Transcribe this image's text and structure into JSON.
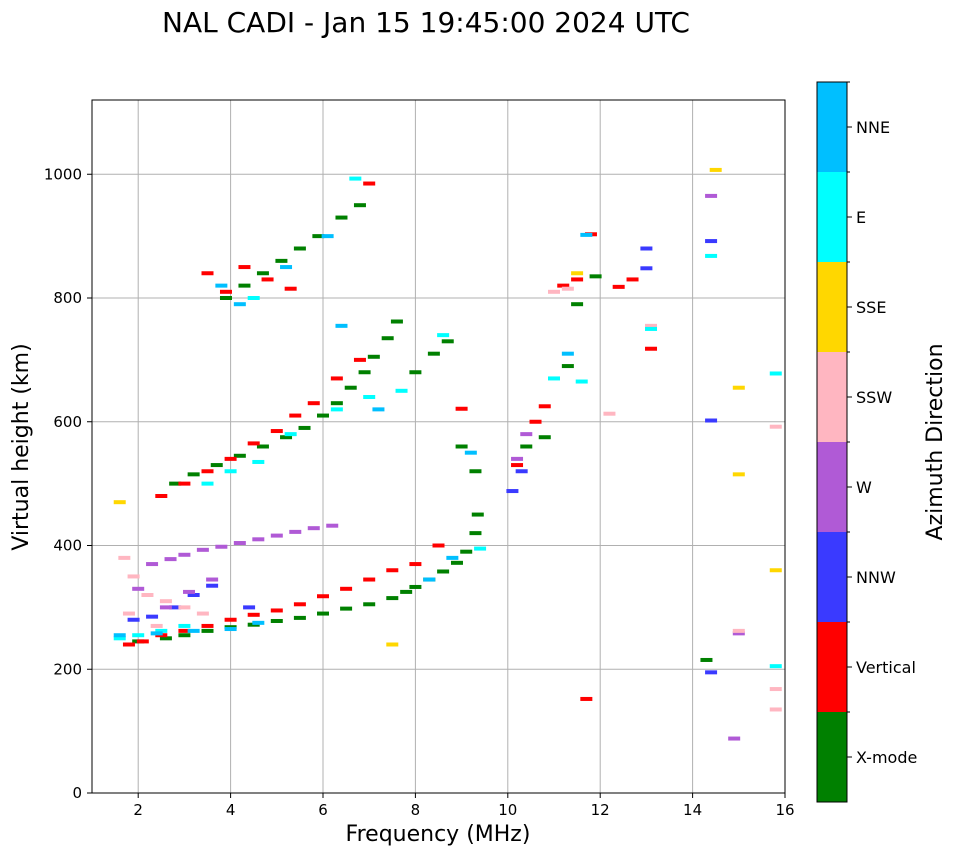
{
  "chart_data": {
    "type": "scatter",
    "title": "NAL CADI - Jan 15 19:45:00 2024 UTC",
    "xlabel": "Frequency (MHz)",
    "ylabel": "Virtual height (km)",
    "xlim": [
      1,
      16
    ],
    "ylim": [
      0,
      1120
    ],
    "xticks": [
      2,
      4,
      6,
      8,
      10,
      12,
      14,
      16
    ],
    "yticks": [
      0,
      200,
      400,
      600,
      800,
      1000
    ],
    "grid": true,
    "colorbar": {
      "title": "Azimuth Direction",
      "categories": [
        {
          "label": "X-mode",
          "color": "#008000"
        },
        {
          "label": "Vertical",
          "color": "#ff0000"
        },
        {
          "label": "NNW",
          "color": "#3a3aff"
        },
        {
          "label": "W",
          "color": "#b05ad6"
        },
        {
          "label": "SSW",
          "color": "#ffb6c1"
        },
        {
          "label": "SSE",
          "color": "#ffd700"
        },
        {
          "label": "E",
          "color": "#00ffff"
        },
        {
          "label": "NNE",
          "color": "#00bfff"
        }
      ]
    },
    "series": [
      {
        "name": "X-mode",
        "color": "#008000",
        "points": [
          [
            2.0,
            245
          ],
          [
            2.6,
            250
          ],
          [
            3.0,
            255
          ],
          [
            3.5,
            262
          ],
          [
            4.0,
            268
          ],
          [
            4.5,
            272
          ],
          [
            5.0,
            278
          ],
          [
            5.5,
            283
          ],
          [
            6.0,
            290
          ],
          [
            6.5,
            298
          ],
          [
            7.0,
            305
          ],
          [
            7.5,
            315
          ],
          [
            7.8,
            325
          ],
          [
            8.0,
            333
          ],
          [
            8.3,
            345
          ],
          [
            8.6,
            358
          ],
          [
            8.9,
            372
          ],
          [
            9.1,
            390
          ],
          [
            9.3,
            420
          ],
          [
            9.35,
            450
          ],
          [
            2.8,
            500
          ],
          [
            3.2,
            515
          ],
          [
            3.7,
            530
          ],
          [
            4.2,
            545
          ],
          [
            4.7,
            560
          ],
          [
            5.2,
            575
          ],
          [
            5.6,
            590
          ],
          [
            6.0,
            610
          ],
          [
            6.3,
            630
          ],
          [
            6.6,
            655
          ],
          [
            6.9,
            680
          ],
          [
            7.1,
            705
          ],
          [
            7.4,
            735
          ],
          [
            7.6,
            762
          ],
          [
            3.9,
            800
          ],
          [
            4.3,
            820
          ],
          [
            4.7,
            840
          ],
          [
            5.1,
            860
          ],
          [
            5.5,
            880
          ],
          [
            5.9,
            900
          ],
          [
            6.4,
            930
          ],
          [
            6.8,
            950
          ],
          [
            8.0,
            680
          ],
          [
            8.4,
            710
          ],
          [
            8.7,
            730
          ],
          [
            9.0,
            560
          ],
          [
            9.3,
            520
          ],
          [
            10.4,
            560
          ],
          [
            10.8,
            575
          ],
          [
            11.3,
            690
          ],
          [
            11.5,
            790
          ],
          [
            11.9,
            835
          ],
          [
            14.3,
            215
          ]
        ]
      },
      {
        "name": "Vertical",
        "color": "#ff0000",
        "points": [
          [
            1.8,
            240
          ],
          [
            2.1,
            245
          ],
          [
            2.5,
            255
          ],
          [
            3.0,
            262
          ],
          [
            3.5,
            270
          ],
          [
            4.0,
            280
          ],
          [
            4.5,
            288
          ],
          [
            5.0,
            295
          ],
          [
            5.5,
            305
          ],
          [
            6.0,
            318
          ],
          [
            6.5,
            330
          ],
          [
            7.0,
            345
          ],
          [
            7.5,
            360
          ],
          [
            8.0,
            370
          ],
          [
            8.5,
            400
          ],
          [
            2.5,
            480
          ],
          [
            3.0,
            500
          ],
          [
            3.5,
            520
          ],
          [
            4.0,
            540
          ],
          [
            4.5,
            565
          ],
          [
            5.0,
            585
          ],
          [
            5.4,
            610
          ],
          [
            5.8,
            630
          ],
          [
            6.3,
            670
          ],
          [
            6.8,
            700
          ],
          [
            3.5,
            840
          ],
          [
            3.9,
            810
          ],
          [
            4.3,
            850
          ],
          [
            4.8,
            830
          ],
          [
            5.3,
            815
          ],
          [
            10.2,
            530
          ],
          [
            10.6,
            600
          ],
          [
            10.8,
            625
          ],
          [
            11.2,
            820
          ],
          [
            11.5,
            830
          ],
          [
            12.4,
            818
          ],
          [
            12.7,
            830
          ],
          [
            13.1,
            718
          ],
          [
            11.7,
            152
          ],
          [
            11.8,
            903
          ],
          [
            7.0,
            985
          ],
          [
            9.0,
            621
          ]
        ]
      },
      {
        "name": "NNW",
        "color": "#3a3aff",
        "points": [
          [
            1.9,
            280
          ],
          [
            2.3,
            285
          ],
          [
            2.8,
            300
          ],
          [
            3.2,
            320
          ],
          [
            3.6,
            335
          ],
          [
            4.4,
            300
          ],
          [
            10.1,
            488
          ],
          [
            10.3,
            520
          ],
          [
            13.0,
            848
          ],
          [
            13.0,
            880
          ],
          [
            14.4,
            892
          ],
          [
            14.4,
            602
          ],
          [
            14.4,
            195
          ]
        ]
      },
      {
        "name": "W",
        "color": "#b05ad6",
        "points": [
          [
            2.0,
            330
          ],
          [
            2.3,
            370
          ],
          [
            2.7,
            378
          ],
          [
            3.0,
            385
          ],
          [
            3.4,
            393
          ],
          [
            3.8,
            398
          ],
          [
            4.2,
            404
          ],
          [
            4.6,
            410
          ],
          [
            5.0,
            416
          ],
          [
            5.4,
            422
          ],
          [
            5.8,
            428
          ],
          [
            6.2,
            432
          ],
          [
            2.6,
            300
          ],
          [
            3.1,
            325
          ],
          [
            3.6,
            345
          ],
          [
            14.4,
            965
          ],
          [
            14.9,
            88
          ],
          [
            15.0,
            258
          ],
          [
            10.2,
            540
          ],
          [
            10.4,
            580
          ]
        ]
      },
      {
        "name": "SSW",
        "color": "#ffb6c1",
        "points": [
          [
            1.7,
            380
          ],
          [
            1.9,
            350
          ],
          [
            2.2,
            320
          ],
          [
            2.6,
            310
          ],
          [
            3.0,
            300
          ],
          [
            3.4,
            290
          ],
          [
            1.8,
            290
          ],
          [
            2.4,
            270
          ],
          [
            11.0,
            810
          ],
          [
            11.3,
            815
          ],
          [
            12.2,
            613
          ],
          [
            13.1,
            755
          ],
          [
            15.8,
            168
          ],
          [
            15.8,
            135
          ],
          [
            15.0,
            262
          ],
          [
            15.8,
            592
          ]
        ]
      },
      {
        "name": "SSE",
        "color": "#ffd700",
        "points": [
          [
            1.6,
            470
          ],
          [
            7.5,
            240
          ],
          [
            15.0,
            655
          ],
          [
            15.0,
            515
          ],
          [
            15.8,
            360
          ],
          [
            14.5,
            1007
          ],
          [
            11.5,
            840
          ]
        ]
      },
      {
        "name": "E",
        "color": "#00ffff",
        "points": [
          [
            1.6,
            250
          ],
          [
            2.0,
            255
          ],
          [
            2.5,
            262
          ],
          [
            3.0,
            270
          ],
          [
            3.5,
            500
          ],
          [
            4.0,
            520
          ],
          [
            4.6,
            535
          ],
          [
            5.3,
            580
          ],
          [
            6.3,
            620
          ],
          [
            7.0,
            640
          ],
          [
            7.7,
            650
          ],
          [
            8.6,
            740
          ],
          [
            9.4,
            395
          ],
          [
            11.0,
            670
          ],
          [
            11.6,
            665
          ],
          [
            13.1,
            750
          ],
          [
            14.4,
            868
          ],
          [
            15.8,
            205
          ],
          [
            15.8,
            678
          ],
          [
            6.7,
            993
          ],
          [
            4.5,
            800
          ]
        ]
      },
      {
        "name": "NNE",
        "color": "#00bfff",
        "points": [
          [
            1.6,
            255
          ],
          [
            2.4,
            258
          ],
          [
            3.2,
            262
          ],
          [
            4.0,
            265
          ],
          [
            4.6,
            275
          ],
          [
            8.3,
            345
          ],
          [
            8.8,
            380
          ],
          [
            9.2,
            550
          ],
          [
            6.4,
            755
          ],
          [
            7.2,
            620
          ],
          [
            3.8,
            820
          ],
          [
            4.2,
            790
          ],
          [
            11.3,
            710
          ],
          [
            11.7,
            902
          ],
          [
            5.2,
            850
          ],
          [
            6.1,
            900
          ]
        ]
      }
    ]
  }
}
